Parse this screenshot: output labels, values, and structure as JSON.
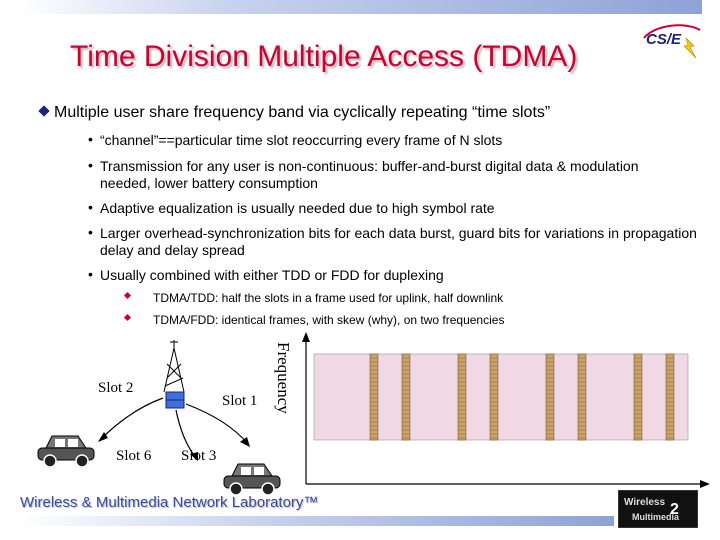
{
  "title": "Time Division Multiple Access (TDMA)",
  "logo_text": "CS/E",
  "main_bullet": "Multiple user share frequency band via cyclically repeating “time slots”",
  "sub_bullets": [
    "“channel”==particular time slot reoccurring every frame of N slots",
    "Transmission for any user is non-continuous: buffer-and-burst digital data & modulation needed, lower battery consumption",
    "Adaptive equalization is usually needed due to high symbol rate",
    "Larger overhead-synchronization bits for each data burst, guard bits for variations in propagation delay and delay spread",
    "Usually combined with either TDD or FDD for duplexing"
  ],
  "sub_sub_bullets": [
    "TDMA/TDD: half the slots in a frame used for uplink, half downlink",
    "TDMA/FDD: identical frames, with skew (why), on two frequencies"
  ],
  "diagram": {
    "slot_labels": [
      "Slot 2",
      "Slot 1",
      "Slot 6",
      "Slot 3"
    ],
    "frequency_label": "Frequency",
    "band_color": "#f0d8e4",
    "slot_color": "#c9a36b"
  },
  "footer": "Wireless & Multimedia Network Laboratory™",
  "footer_logo_text": "Wireless Multimedia"
}
